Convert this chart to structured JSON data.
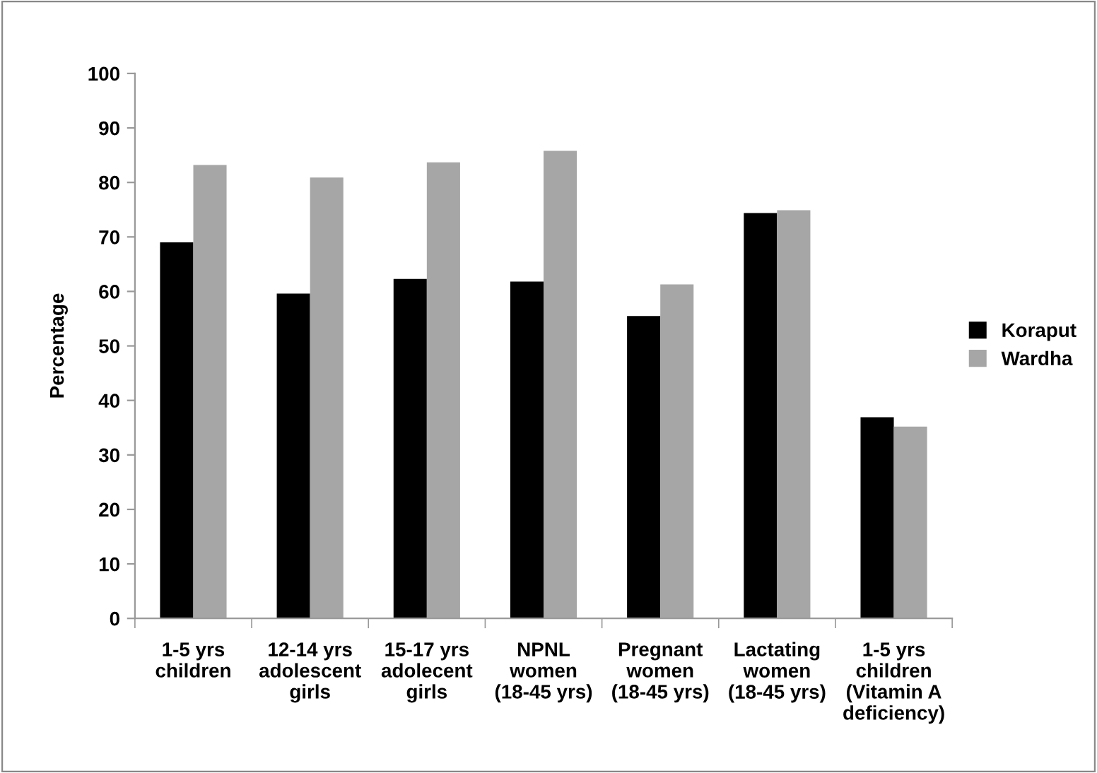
{
  "chart_data": {
    "type": "bar",
    "ylabel": "Percentage",
    "categories": [
      "1-5 yrs\nchildren",
      "12-14 yrs\nadolescent\ngirls",
      "15-17 yrs\nadolecent\ngirls",
      "NPNL\nwomen\n(18-45 yrs)",
      "Pregnant\nwomen\n(18-45 yrs)",
      "Lactating\nwomen\n(18-45 yrs)",
      "1-5 yrs\nchildren\n(Vitamin A\ndeficiency)"
    ],
    "series": [
      {
        "name": "Koraput",
        "color": "#000000",
        "values": [
          69.0,
          59.6,
          62.3,
          61.8,
          55.5,
          74.4,
          36.9
        ]
      },
      {
        "name": "Wardha",
        "color": "#a6a6a6",
        "values": [
          83.2,
          80.9,
          83.7,
          85.8,
          61.3,
          74.9,
          35.2
        ]
      }
    ],
    "ylim": [
      0,
      100
    ],
    "yticks": [
      0,
      10,
      20,
      30,
      40,
      50,
      60,
      70,
      80,
      90,
      100
    ],
    "grid": false,
    "legend": "right"
  }
}
